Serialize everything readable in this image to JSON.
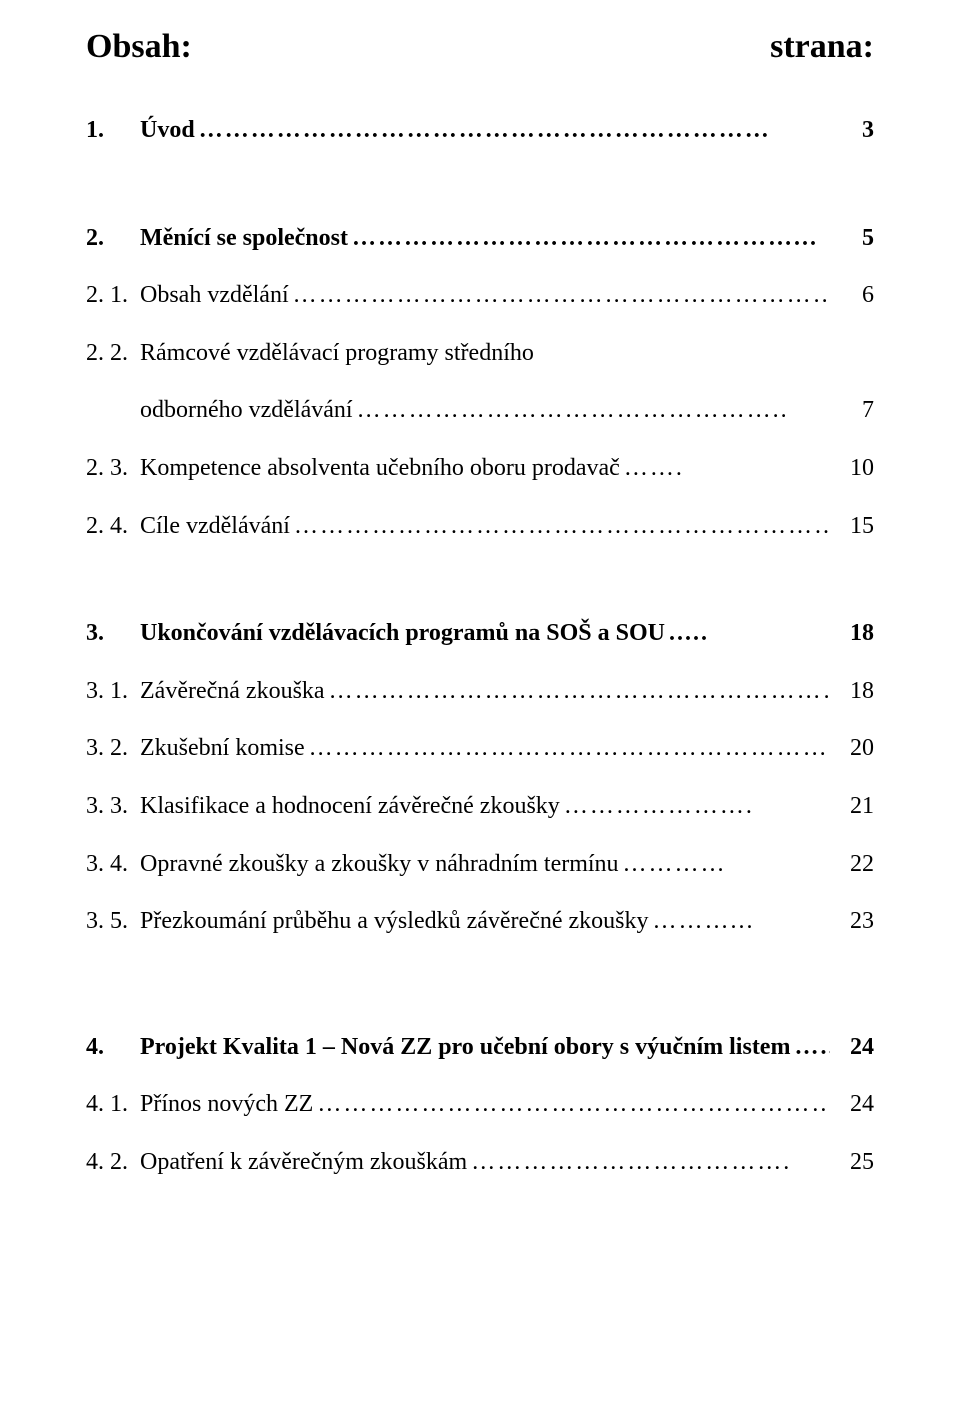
{
  "header": {
    "left": "Obsah:",
    "right": "strana:"
  },
  "entries": {
    "s1": {
      "num": "1.",
      "label": "Úvod",
      "dots": "…………………………………………………………",
      "page": "3",
      "bold": true
    },
    "s2": {
      "num": "2.",
      "label": "Měnící se společnost",
      "dots": "……………………………………………...",
      "page": "5",
      "bold": true
    },
    "s2_1": {
      "num": "2. 1.",
      "label": "Obsah vzdělání",
      "dots": "……………………………………………………….",
      "page": "6",
      "bold": false
    },
    "s2_2": {
      "num": "2. 2.",
      "label": "Rámcové vzdělávací programy středního",
      "dots": "",
      "page": "",
      "bold": false
    },
    "s2_2b": {
      "num": "",
      "label": "odborného vzdělávání",
      "dots": "…………………………………………..",
      "page": "7",
      "bold": false
    },
    "s2_3": {
      "num": "2. 3.",
      "label": "Kompetence absolventa učebního oboru prodavač",
      "dots": "…….",
      "page": "10",
      "bold": false
    },
    "s2_4": {
      "num": "2. 4.",
      "label": "Cíle vzdělávání",
      "dots": "……………………………………………………….",
      "page": "15",
      "bold": false
    },
    "s3": {
      "num": "3.",
      "label": "Ukončování vzdělávacích programů na SOŠ a SOU",
      "dots": ".....",
      "page": "18",
      "bold": true
    },
    "s3_1": {
      "num": "3. 1.",
      "label": "Závěrečná zkouška",
      "dots": "……………………………………………………",
      "page": "18",
      "bold": false
    },
    "s3_2": {
      "num": "3. 2.",
      "label": "Zkušební komise",
      "dots": "……………………………………………………….",
      "page": "20",
      "bold": false
    },
    "s3_3": {
      "num": "3. 3.",
      "label": "Klasifikace a hodnocení závěrečné zkoušky",
      "dots": "………………….",
      "page": "21",
      "bold": false
    },
    "s3_4": {
      "num": "3. 4.",
      "label": "Opravné zkoušky a zkoušky v náhradním termínu",
      "dots": "…………",
      "page": "22",
      "bold": false
    },
    "s3_5": {
      "num": "3. 5.",
      "label": "Přezkoumání průběhu a výsledků závěrečné zkoušky",
      "dots": "………...",
      "page": "23",
      "bold": false
    },
    "s4": {
      "num": "4.",
      "label": "Projekt Kvalita 1 – Nová ZZ  pro učební obory s výučním listem",
      "dots": " …..",
      "page": "24",
      "bold": true
    },
    "s4_1": {
      "num": "4. 1.",
      "label": "Přínos nových ZZ",
      "dots": "………………………………………………………",
      "page": "24",
      "bold": false
    },
    "s4_2": {
      "num": "4. 2.",
      "label": "Opatření k závěrečným zkouškám",
      "dots": "……………………………….",
      "page": "25",
      "bold": false
    }
  }
}
